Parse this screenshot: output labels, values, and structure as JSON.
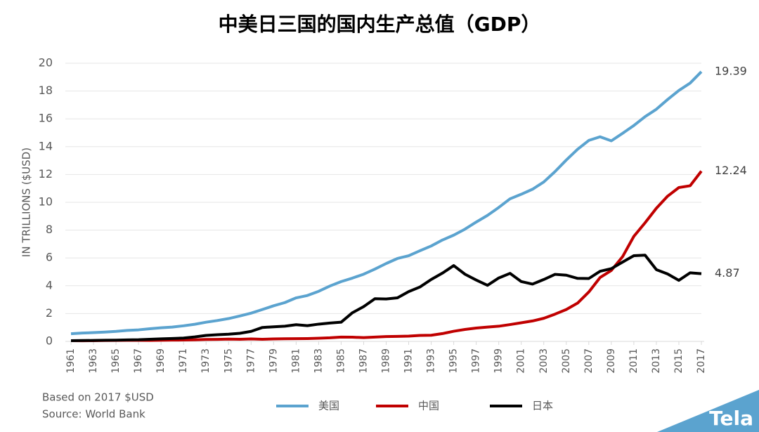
{
  "chart_data": {
    "type": "line",
    "title": "中美日三国的国内生产总值（GDP）",
    "y_label": "IN TRILLIONS ($USD)",
    "notes": [
      "Based on 2017 $USD",
      "Source: World Bank"
    ],
    "watermark": "Tela",
    "x": [
      1961,
      1962,
      1963,
      1964,
      1965,
      1966,
      1967,
      1968,
      1969,
      1970,
      1971,
      1972,
      1973,
      1974,
      1975,
      1976,
      1977,
      1978,
      1979,
      1980,
      1981,
      1982,
      1983,
      1984,
      1985,
      1986,
      1987,
      1988,
      1989,
      1990,
      1991,
      1992,
      1993,
      1994,
      1995,
      1996,
      1997,
      1998,
      1999,
      2000,
      2001,
      2002,
      2003,
      2004,
      2005,
      2006,
      2007,
      2008,
      2009,
      2010,
      2011,
      2012,
      2013,
      2014,
      2015,
      2016,
      2017
    ],
    "xlim": [
      1961,
      2017
    ],
    "xticks": [
      1961,
      1963,
      1965,
      1967,
      1969,
      1971,
      1973,
      1975,
      1977,
      1979,
      1981,
      1983,
      1985,
      1987,
      1989,
      1991,
      1993,
      1995,
      1997,
      1999,
      2001,
      2003,
      2005,
      2007,
      2009,
      2011,
      2013,
      2015,
      2017
    ],
    "ylim": [
      0,
      20
    ],
    "yticks": [
      0,
      2,
      4,
      6,
      8,
      10,
      12,
      14,
      16,
      18,
      20
    ],
    "grid": true,
    "legend": "bottom",
    "series": [
      {
        "name": "美国",
        "color": "#5ba3cf",
        "values": [
          0.55,
          0.6,
          0.63,
          0.67,
          0.72,
          0.79,
          0.83,
          0.91,
          0.98,
          1.03,
          1.12,
          1.23,
          1.38,
          1.5,
          1.64,
          1.83,
          2.03,
          2.29,
          2.56,
          2.79,
          3.13,
          3.3,
          3.6,
          3.98,
          4.3,
          4.55,
          4.83,
          5.2,
          5.6,
          5.96,
          6.16,
          6.52,
          6.86,
          7.29,
          7.64,
          8.07,
          8.58,
          9.06,
          9.63,
          10.25,
          10.58,
          10.94,
          11.46,
          12.21,
          13.04,
          13.81,
          14.45,
          14.71,
          14.42,
          14.96,
          15.52,
          16.16,
          16.69,
          17.39,
          18.04,
          18.57,
          19.39
        ]
      },
      {
        "name": "中国",
        "color": "#c00000",
        "values": [
          0.05,
          0.047,
          0.05,
          0.06,
          0.07,
          0.076,
          0.073,
          0.071,
          0.079,
          0.092,
          0.1,
          0.114,
          0.139,
          0.144,
          0.163,
          0.154,
          0.175,
          0.149,
          0.178,
          0.191,
          0.196,
          0.205,
          0.23,
          0.26,
          0.31,
          0.3,
          0.27,
          0.31,
          0.35,
          0.36,
          0.38,
          0.43,
          0.44,
          0.56,
          0.73,
          0.86,
          0.96,
          1.03,
          1.09,
          1.21,
          1.34,
          1.47,
          1.66,
          1.96,
          2.29,
          2.75,
          3.55,
          4.59,
          5.1,
          6.09,
          7.55,
          8.53,
          9.57,
          10.44,
          11.06,
          11.19,
          12.24
        ]
      },
      {
        "name": "日本",
        "color": "#000000",
        "values": [
          0.05,
          0.06,
          0.07,
          0.08,
          0.09,
          0.11,
          0.12,
          0.15,
          0.18,
          0.21,
          0.24,
          0.32,
          0.43,
          0.48,
          0.52,
          0.58,
          0.72,
          1.0,
          1.05,
          1.09,
          1.2,
          1.13,
          1.24,
          1.32,
          1.38,
          2.06,
          2.5,
          3.07,
          3.05,
          3.13,
          3.58,
          3.91,
          4.45,
          4.91,
          5.45,
          4.83,
          4.41,
          4.03,
          4.56,
          4.89,
          4.3,
          4.12,
          4.45,
          4.82,
          4.76,
          4.53,
          4.52,
          5.04,
          5.23,
          5.7,
          6.16,
          6.2,
          5.16,
          4.85,
          4.39,
          4.93,
          4.87
        ]
      }
    ]
  }
}
